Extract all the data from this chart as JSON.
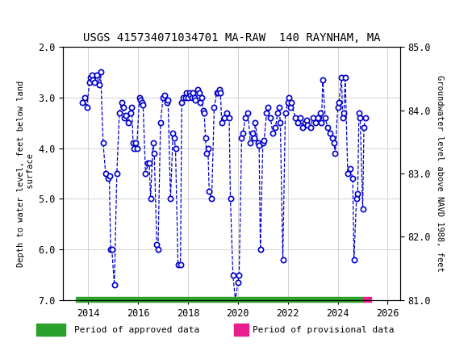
{
  "title": "USGS 415734071034701 MA-RAW  140 RAYNHAM, MA",
  "ylabel_left": "Depth to water level, feet below land\n surface",
  "ylabel_right": "Groundwater level above NAVD 1988, feet",
  "ylim_left": [
    7.0,
    2.0
  ],
  "ylim_right": [
    81.0,
    85.0
  ],
  "yticks_left": [
    2.0,
    3.0,
    4.0,
    5.0,
    6.0,
    7.0
  ],
  "yticks_right": [
    81.0,
    82.0,
    83.0,
    84.0,
    85.0
  ],
  "xlim": [
    2013.0,
    2026.5
  ],
  "xticks": [
    2014,
    2016,
    2018,
    2020,
    2022,
    2024,
    2026
  ],
  "header_color": "#1a6e3c",
  "data_color": "#0000cc",
  "approved_color": "#2ca02c",
  "provisional_color": "#e81e8e",
  "background_color": "#ffffff",
  "grid_color": "#cccccc",
  "data": [
    [
      2013.75,
      3.1
    ],
    [
      2013.85,
      3.0
    ],
    [
      2013.95,
      3.2
    ],
    [
      2014.05,
      2.7
    ],
    [
      2014.1,
      2.6
    ],
    [
      2014.15,
      2.55
    ],
    [
      2014.2,
      2.65
    ],
    [
      2014.25,
      2.7
    ],
    [
      2014.35,
      2.55
    ],
    [
      2014.45,
      2.75
    ],
    [
      2014.5,
      2.5
    ],
    [
      2014.6,
      3.9
    ],
    [
      2014.7,
      4.5
    ],
    [
      2014.8,
      4.6
    ],
    [
      2014.85,
      4.55
    ],
    [
      2014.9,
      6.0
    ],
    [
      2014.95,
      6.0
    ],
    [
      2015.05,
      6.7
    ],
    [
      2015.15,
      4.5
    ],
    [
      2015.25,
      3.3
    ],
    [
      2015.35,
      3.1
    ],
    [
      2015.4,
      3.2
    ],
    [
      2015.45,
      3.4
    ],
    [
      2015.5,
      3.35
    ],
    [
      2015.6,
      3.5
    ],
    [
      2015.7,
      3.3
    ],
    [
      2015.75,
      3.2
    ],
    [
      2015.8,
      3.9
    ],
    [
      2015.85,
      4.0
    ],
    [
      2015.9,
      3.9
    ],
    [
      2015.95,
      4.0
    ],
    [
      2016.05,
      3.0
    ],
    [
      2016.1,
      3.05
    ],
    [
      2016.15,
      3.1
    ],
    [
      2016.2,
      3.15
    ],
    [
      2016.3,
      4.5
    ],
    [
      2016.4,
      4.3
    ],
    [
      2016.45,
      4.3
    ],
    [
      2016.5,
      5.0
    ],
    [
      2016.6,
      3.9
    ],
    [
      2016.65,
      4.1
    ],
    [
      2016.75,
      5.9
    ],
    [
      2016.8,
      6.0
    ],
    [
      2016.9,
      3.5
    ],
    [
      2017.0,
      3.0
    ],
    [
      2017.05,
      2.95
    ],
    [
      2017.15,
      3.1
    ],
    [
      2017.2,
      3.05
    ],
    [
      2017.3,
      5.0
    ],
    [
      2017.4,
      3.7
    ],
    [
      2017.45,
      3.8
    ],
    [
      2017.5,
      4.0
    ],
    [
      2017.6,
      6.3
    ],
    [
      2017.7,
      6.3
    ],
    [
      2017.75,
      3.1
    ],
    [
      2017.8,
      3.0
    ],
    [
      2017.9,
      3.0
    ],
    [
      2017.95,
      2.9
    ],
    [
      2018.0,
      3.0
    ],
    [
      2018.05,
      2.9
    ],
    [
      2018.1,
      2.95
    ],
    [
      2018.15,
      3.0
    ],
    [
      2018.2,
      2.9
    ],
    [
      2018.25,
      3.0
    ],
    [
      2018.3,
      3.05
    ],
    [
      2018.4,
      2.85
    ],
    [
      2018.45,
      2.9
    ],
    [
      2018.5,
      3.1
    ],
    [
      2018.55,
      3.0
    ],
    [
      2018.6,
      3.25
    ],
    [
      2018.65,
      3.3
    ],
    [
      2018.7,
      3.8
    ],
    [
      2018.75,
      4.1
    ],
    [
      2018.8,
      4.0
    ],
    [
      2018.85,
      4.85
    ],
    [
      2018.95,
      5.0
    ],
    [
      2019.05,
      3.2
    ],
    [
      2019.15,
      2.9
    ],
    [
      2019.2,
      2.9
    ],
    [
      2019.25,
      2.85
    ],
    [
      2019.3,
      2.9
    ],
    [
      2019.35,
      3.5
    ],
    [
      2019.45,
      3.4
    ],
    [
      2019.55,
      3.3
    ],
    [
      2019.65,
      3.4
    ],
    [
      2019.7,
      5.0
    ],
    [
      2019.8,
      6.5
    ],
    [
      2019.9,
      7.0
    ],
    [
      2020.0,
      6.65
    ],
    [
      2020.05,
      6.5
    ],
    [
      2020.15,
      3.8
    ],
    [
      2020.2,
      3.7
    ],
    [
      2020.3,
      3.4
    ],
    [
      2020.4,
      3.3
    ],
    [
      2020.5,
      3.9
    ],
    [
      2020.6,
      3.7
    ],
    [
      2020.65,
      3.8
    ],
    [
      2020.7,
      3.5
    ],
    [
      2020.8,
      3.9
    ],
    [
      2020.85,
      3.95
    ],
    [
      2020.9,
      6.0
    ],
    [
      2021.0,
      3.9
    ],
    [
      2021.05,
      3.85
    ],
    [
      2021.15,
      3.3
    ],
    [
      2021.2,
      3.2
    ],
    [
      2021.3,
      3.4
    ],
    [
      2021.4,
      3.7
    ],
    [
      2021.5,
      3.6
    ],
    [
      2021.6,
      3.3
    ],
    [
      2021.65,
      3.2
    ],
    [
      2021.7,
      3.5
    ],
    [
      2021.8,
      6.2
    ],
    [
      2021.9,
      3.3
    ],
    [
      2022.0,
      3.1
    ],
    [
      2022.05,
      3.0
    ],
    [
      2022.1,
      3.2
    ],
    [
      2022.15,
      3.1
    ],
    [
      2022.3,
      3.4
    ],
    [
      2022.4,
      3.5
    ],
    [
      2022.5,
      3.4
    ],
    [
      2022.6,
      3.6
    ],
    [
      2022.7,
      3.5
    ],
    [
      2022.75,
      3.45
    ],
    [
      2022.8,
      3.55
    ],
    [
      2022.9,
      3.6
    ],
    [
      2023.0,
      3.4
    ],
    [
      2023.1,
      3.5
    ],
    [
      2023.2,
      3.4
    ],
    [
      2023.3,
      3.3
    ],
    [
      2023.35,
      3.5
    ],
    [
      2023.4,
      2.65
    ],
    [
      2023.5,
      3.4
    ],
    [
      2023.6,
      3.6
    ],
    [
      2023.7,
      3.7
    ],
    [
      2023.8,
      3.8
    ],
    [
      2023.85,
      3.9
    ],
    [
      2023.9,
      4.1
    ],
    [
      2024.0,
      3.2
    ],
    [
      2024.05,
      3.1
    ],
    [
      2024.15,
      2.6
    ],
    [
      2024.2,
      3.4
    ],
    [
      2024.25,
      3.3
    ],
    [
      2024.3,
      2.6
    ],
    [
      2024.4,
      4.5
    ],
    [
      2024.5,
      4.4
    ],
    [
      2024.6,
      4.6
    ],
    [
      2024.65,
      6.2
    ],
    [
      2024.75,
      5.0
    ],
    [
      2024.8,
      4.9
    ],
    [
      2024.85,
      3.3
    ],
    [
      2024.9,
      3.4
    ],
    [
      2025.0,
      5.2
    ],
    [
      2025.05,
      3.6
    ],
    [
      2025.1,
      3.4
    ]
  ],
  "approved_bar_start": 2013.5,
  "approved_bar_end": 2025.0,
  "provisional_bar_start": 2025.0,
  "provisional_bar_end": 2025.35,
  "legend_approved_label": "Period of approved data",
  "legend_provisional_label": "Period of provisional data"
}
